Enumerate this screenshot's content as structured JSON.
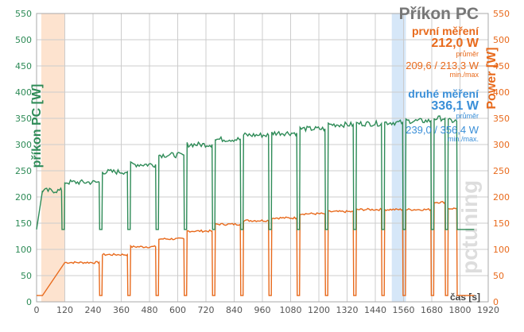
{
  "chart_data": {
    "type": "line",
    "title": "Příkon PC",
    "ylabel_left": "příkon PC [W]",
    "ylabel_right": "Power [W]",
    "xlabel": "čas [s]",
    "xlim": [
      0,
      1920
    ],
    "ylim": [
      0,
      550
    ],
    "y_ticks": [
      0,
      50,
      100,
      150,
      200,
      250,
      300,
      350,
      400,
      450,
      500,
      550
    ],
    "x_ticks": [
      0,
      120,
      240,
      360,
      480,
      600,
      720,
      840,
      960,
      1080,
      1200,
      1320,
      1440,
      1560,
      1680,
      1800,
      1920
    ],
    "grid": true,
    "highlight_regions": [
      {
        "from": 20,
        "to": 120,
        "color": "#fde3cf"
      },
      {
        "from": 1510,
        "to": 1570,
        "color": "#d6e7f8"
      }
    ],
    "series": [
      {
        "name": "první měření",
        "color": "#e86a1c",
        "idle": 12,
        "points": [
          [
            0,
            12
          ],
          [
            25,
            12
          ],
          [
            120,
            75
          ],
          [
            280,
            90
          ],
          [
            400,
            105
          ],
          [
            520,
            120
          ],
          [
            640,
            135
          ],
          [
            760,
            148
          ],
          [
            880,
            155
          ],
          [
            1000,
            160
          ],
          [
            1120,
            168
          ],
          [
            1240,
            172
          ],
          [
            1360,
            176
          ],
          [
            1480,
            176
          ],
          [
            1570,
            176
          ],
          [
            1690,
            190
          ],
          [
            1750,
            178
          ],
          [
            1800,
            12
          ],
          [
            1860,
            12
          ]
        ]
      },
      {
        "name": "druhé měření",
        "color": "#2e8b57",
        "idle": 138,
        "points": [
          [
            0,
            138
          ],
          [
            25,
            212
          ],
          [
            120,
            228
          ],
          [
            280,
            248
          ],
          [
            400,
            262
          ],
          [
            520,
            280
          ],
          [
            640,
            300
          ],
          [
            760,
            310
          ],
          [
            880,
            318
          ],
          [
            1000,
            322
          ],
          [
            1120,
            330
          ],
          [
            1240,
            338
          ],
          [
            1360,
            340
          ],
          [
            1480,
            342
          ],
          [
            1570,
            345
          ],
          [
            1690,
            350
          ],
          [
            1750,
            345
          ],
          [
            1800,
            138
          ],
          [
            1860,
            138
          ]
        ]
      }
    ]
  },
  "title": "Příkon PC",
  "first": {
    "label": "první měření",
    "value": "212,0 W",
    "value_sub": "průměr",
    "minmax": "209,6 / 213,3 W",
    "minmax_sub": "min./max"
  },
  "second": {
    "label": "druhé měření",
    "value": "336,1 W",
    "value_sub": "průměr",
    "minmax": "239,0 / 356,4 W",
    "minmax_sub": "min./max."
  },
  "colors": {
    "green": "#2e8b57",
    "orange": "#e86a1c",
    "blue": "#3a8fd8",
    "grid": "#cccccc",
    "title": "#777777"
  },
  "watermark": "pctuning"
}
